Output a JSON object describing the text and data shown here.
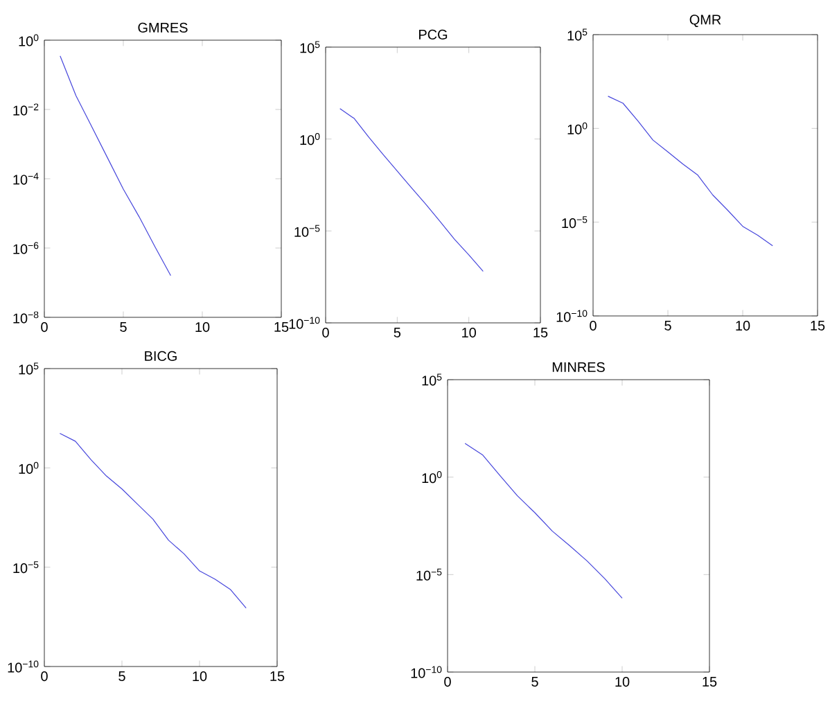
{
  "chart_data": [
    {
      "type": "line",
      "title": "GMRES",
      "log": "y",
      "color": "#4646dc",
      "x": [
        1,
        2,
        3,
        4,
        5,
        6,
        7,
        8
      ],
      "values": [
        0.35,
        0.025,
        0.0032,
        0.0004,
        5e-05,
        8e-06,
        1.1e-06,
        1.6e-07
      ],
      "xlim": [
        0,
        15
      ],
      "xticks": [
        0,
        5,
        10,
        15
      ],
      "ylim": [
        1e-08,
        1
      ],
      "yticks": [
        {
          "value": 1e-08,
          "label": "10$^{−8}$"
        },
        {
          "value": 1e-06,
          "label": "10$^{−6}$"
        },
        {
          "value": 0.0001,
          "label": "10$^{−4}$"
        },
        {
          "value": 0.01,
          "label": "10$^{−2}$"
        },
        {
          "value": 1,
          "label": "10$^{0}$"
        }
      ]
    },
    {
      "type": "line",
      "title": "PCG",
      "log": "y",
      "color": "#4646dc",
      "x": [
        1,
        2,
        3,
        4,
        5,
        6,
        7,
        8,
        9,
        10,
        11
      ],
      "values": [
        45,
        13,
        1.3,
        0.15,
        0.018,
        0.0022,
        0.00028,
        3.2e-05,
        3.5e-06,
        5e-07,
        6.3e-08
      ],
      "xlim": [
        0,
        15
      ],
      "xticks": [
        0,
        5,
        10,
        15
      ],
      "ylim": [
        1e-10,
        100000.0
      ],
      "yticks": [
        {
          "value": 1e-10,
          "label": "10$^{−10}$"
        },
        {
          "value": 1e-05,
          "label": "10$^{−5}$"
        },
        {
          "value": 1,
          "label": "10$^{0}$"
        },
        {
          "value": 100000.0,
          "label": "10$^{5}$"
        }
      ]
    },
    {
      "type": "line",
      "title": "QMR",
      "log": "y",
      "color": "#4646dc",
      "x": [
        1,
        2,
        3,
        4,
        5,
        6,
        7,
        8,
        9,
        10,
        11,
        12
      ],
      "values": [
        52,
        22,
        2.5,
        0.24,
        0.056,
        0.0126,
        0.0032,
        0.00028,
        4.3e-05,
        6e-06,
        2e-06,
        5.5e-07
      ],
      "xlim": [
        0,
        15
      ],
      "xticks": [
        0,
        5,
        10,
        15
      ],
      "ylim": [
        1e-10,
        100000.0
      ],
      "yticks": [
        {
          "value": 1e-10,
          "label": "10$^{−10}$"
        },
        {
          "value": 1e-05,
          "label": "10$^{−5}$"
        },
        {
          "value": 1,
          "label": "10$^{0}$"
        },
        {
          "value": 100000.0,
          "label": "10$^{5}$"
        }
      ]
    },
    {
      "type": "line",
      "title": "BICG",
      "log": "y",
      "color": "#4646dc",
      "x": [
        1,
        2,
        3,
        4,
        5,
        6,
        7,
        8,
        9,
        10,
        11,
        12,
        13
      ],
      "values": [
        55,
        22,
        2.6,
        0.39,
        0.087,
        0.015,
        0.0026,
        0.00023,
        4.7e-05,
        6.5e-06,
        2.5e-06,
        7.4e-07,
        8.7e-08
      ],
      "xlim": [
        0,
        15
      ],
      "xticks": [
        0,
        5,
        10,
        15
      ],
      "ylim": [
        1e-10,
        100000.0
      ],
      "yticks": [
        {
          "value": 1e-10,
          "label": "10$^{−10}$"
        },
        {
          "value": 1e-05,
          "label": "10$^{−5}$"
        },
        {
          "value": 1,
          "label": "10$^{0}$"
        },
        {
          "value": 100000.0,
          "label": "10$^{5}$"
        }
      ]
    },
    {
      "type": "line",
      "title": "MINRES",
      "log": "y",
      "color": "#4646dc",
      "x": [
        1,
        2,
        3,
        4,
        5,
        6,
        7,
        8,
        9,
        10
      ],
      "values": [
        54,
        14,
        1.2,
        0.11,
        0.015,
        0.0017,
        0.0003,
        4.9e-05,
        6.2e-06,
        6.2e-07
      ],
      "xlim": [
        0,
        15
      ],
      "xticks": [
        0,
        5,
        10,
        15
      ],
      "ylim": [
        1e-10,
        100000.0
      ],
      "yticks": [
        {
          "value": 1e-10,
          "label": "10$^{−10}$"
        },
        {
          "value": 1e-05,
          "label": "10$^{−5}$"
        },
        {
          "value": 1,
          "label": "10$^{0}$"
        },
        {
          "value": 100000.0,
          "label": "10$^{5}$"
        }
      ]
    }
  ]
}
